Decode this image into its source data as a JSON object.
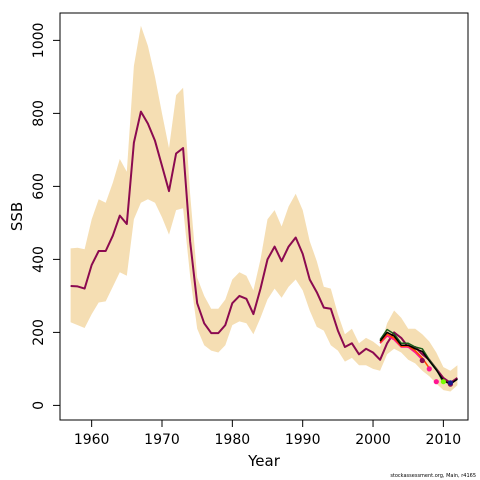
{
  "chart_data": {
    "type": "line",
    "title": "",
    "xlabel": "Year",
    "ylabel": "SSB",
    "xlim": [
      1955.5,
      2013.5
    ],
    "ylim": [
      -40,
      1075
    ],
    "x_ticks": [
      1960,
      1970,
      1980,
      1990,
      2000,
      2010
    ],
    "y_ticks": [
      0,
      200,
      400,
      600,
      800,
      1000
    ],
    "grid": false,
    "legend": "none",
    "band_color": "#f5deb3",
    "credit": "stockassessment.org, Main, r4165",
    "confidence_band": {
      "x": [
        1957,
        1958,
        1959,
        1960,
        1961,
        1962,
        1963,
        1964,
        1965,
        1966,
        1967,
        1968,
        1969,
        1970,
        1971,
        1972,
        1973,
        1974,
        1975,
        1976,
        1977,
        1978,
        1979,
        1980,
        1981,
        1982,
        1983,
        1984,
        1985,
        1986,
        1987,
        1988,
        1989,
        1990,
        1991,
        1992,
        1993,
        1994,
        1995,
        1996,
        1997,
        1998,
        1999,
        2000,
        2001,
        2002,
        2003,
        2004,
        2005,
        2006,
        2007,
        2008,
        2009,
        2010,
        2011,
        2012
      ],
      "upper": [
        430,
        432,
        428,
        510,
        565,
        555,
        610,
        675,
        640,
        930,
        1040,
        985,
        900,
        800,
        705,
        850,
        870,
        580,
        350,
        300,
        265,
        265,
        290,
        345,
        365,
        355,
        315,
        400,
        510,
        535,
        490,
        545,
        580,
        535,
        450,
        395,
        325,
        320,
        250,
        195,
        210,
        170,
        185,
        175,
        160,
        225,
        260,
        240,
        210,
        210,
        195,
        175,
        145,
        105,
        95,
        110
      ],
      "lower": [
        228,
        220,
        212,
        250,
        282,
        285,
        325,
        365,
        355,
        510,
        555,
        565,
        555,
        515,
        468,
        535,
        540,
        355,
        210,
        165,
        150,
        145,
        165,
        220,
        230,
        225,
        195,
        240,
        290,
        320,
        295,
        325,
        345,
        315,
        260,
        215,
        205,
        165,
        150,
        120,
        130,
        110,
        110,
        100,
        95,
        140,
        155,
        145,
        125,
        115,
        95,
        80,
        60,
        42,
        38,
        55
      ]
    },
    "series": [
      {
        "color": "#8b0a50",
        "x": [
          1957,
          1958,
          1959,
          1960,
          1961,
          1962,
          1963,
          1964,
          1965,
          1966,
          1967,
          1968,
          1969,
          1970,
          1971,
          1972,
          1973,
          1974,
          1975,
          1976,
          1977,
          1978,
          1979,
          1980,
          1981,
          1982,
          1983,
          1984,
          1985,
          1986,
          1987,
          1988,
          1989,
          1990,
          1991,
          1992,
          1993,
          1994,
          1995,
          1996,
          1997,
          1998,
          1999,
          2000,
          2001,
          2002,
          2003,
          2004,
          2005,
          2006,
          2007,
          2008,
          2009,
          2010,
          2011,
          2012
        ],
        "y": [
          327,
          326,
          320,
          385,
          423,
          423,
          465,
          520,
          497,
          720,
          805,
          772,
          725,
          656,
          587,
          690,
          705,
          450,
          280,
          225,
          198,
          198,
          220,
          280,
          300,
          292,
          250,
          320,
          400,
          435,
          395,
          435,
          460,
          415,
          345,
          310,
          268,
          265,
          205,
          160,
          170,
          140,
          155,
          145,
          125,
          170,
          200,
          185,
          160,
          160,
          140,
          125,
          100,
          75,
          62,
          75
        ]
      },
      {
        "color": "#1a5c1a",
        "x": [
          2001,
          2002,
          2003,
          2004,
          2005,
          2006,
          2007,
          2008,
          2009,
          2010
        ],
        "y": [
          180,
          208,
          196,
          170,
          170,
          160,
          155,
          125,
          100,
          62
        ]
      },
      {
        "color": "#ff1493",
        "x": [
          2001,
          2002,
          2003,
          2004,
          2005,
          2006,
          2007
        ],
        "y": [
          170,
          190,
          180,
          160,
          160,
          145,
          125
        ]
      },
      {
        "color": "#ff4500",
        "x": [
          2001,
          2002,
          2003,
          2004,
          2005,
          2006,
          2007,
          2008
        ],
        "y": [
          172,
          195,
          185,
          162,
          163,
          150,
          130,
          102
        ]
      },
      {
        "color": "#000000",
        "x": [
          2001,
          2002,
          2003,
          2004,
          2005,
          2006,
          2007,
          2008,
          2009,
          2010,
          2011,
          2012
        ],
        "y": [
          176,
          200,
          190,
          165,
          165,
          155,
          148,
          122,
          97,
          68,
          58,
          72
        ]
      }
    ],
    "endpoints": [
      {
        "x": 2007,
        "y": 123,
        "color": "#8b0a50"
      },
      {
        "x": 2008,
        "y": 100,
        "color": "#ff1493"
      },
      {
        "x": 2009,
        "y": 65,
        "color": "#ff1493"
      },
      {
        "x": 2010,
        "y": 65,
        "color": "#7cfc00"
      },
      {
        "x": 2011,
        "y": 58,
        "color": "#8b0a50"
      },
      {
        "x": 2011,
        "y": 62,
        "color": "#1a1a8b"
      }
    ]
  }
}
